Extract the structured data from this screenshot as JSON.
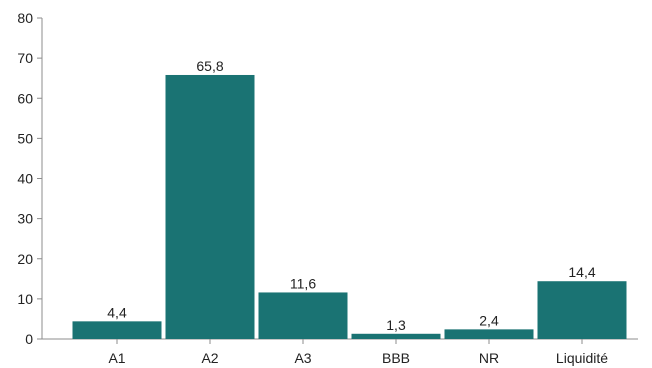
{
  "chart_data": {
    "type": "bar",
    "title": "",
    "xlabel": "",
    "ylabel": "",
    "categories": [
      "A1",
      "A2",
      "A3",
      "BBB",
      "NR",
      "Liquidité"
    ],
    "values": [
      4.4,
      65.8,
      11.6,
      1.3,
      2.4,
      14.4
    ],
    "value_labels": [
      "4,4",
      "65,8",
      "11,6",
      "1,3",
      "2,4",
      "14,4"
    ],
    "ylim": [
      0,
      80
    ],
    "y_ticks": [
      0,
      10,
      20,
      30,
      40,
      50,
      60,
      70,
      80
    ],
    "grid": false,
    "legend": "none",
    "colors": {
      "bar": "#1a7373",
      "axis": "#8c8c8c",
      "text": "#222222"
    }
  }
}
